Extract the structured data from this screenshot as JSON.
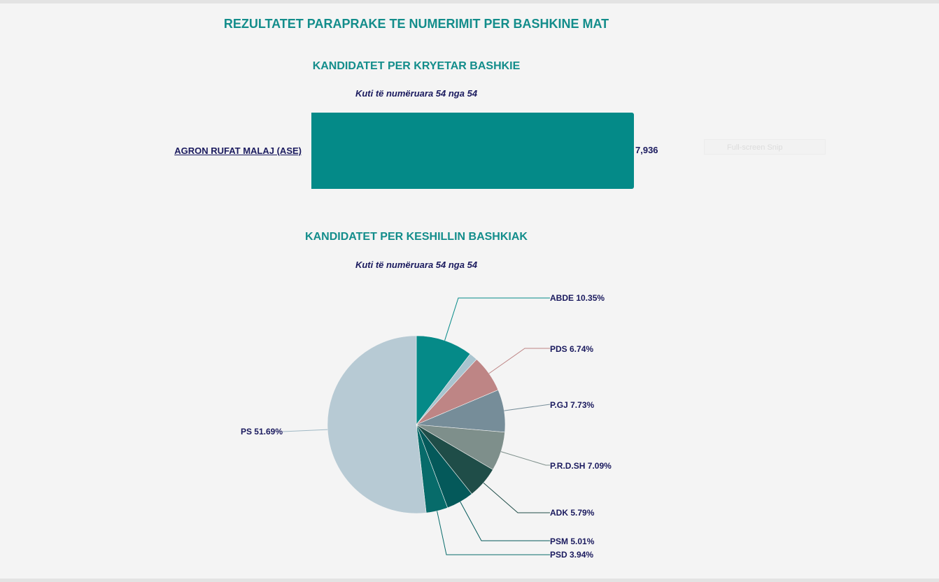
{
  "page": {
    "title": "REZULTATET PARAPRAKE TE NUMERIMIT PER BASHKINE MAT",
    "snip_text": "Full-screen Snip"
  },
  "chart_data": [
    {
      "type": "bar",
      "title": "KANDIDATET PER KRYETAR BASHKIE",
      "subtitle": "Kuti të numëruara 54 nga 54",
      "categories": [
        "AGRON RUFAT MALAJ (ASE)"
      ],
      "values": [
        7936
      ],
      "value_labels": [
        "7,936"
      ],
      "color": "#048a88",
      "orientation": "horizontal"
    },
    {
      "type": "pie",
      "title": "KANDIDATET PER KESHILLIN BASHKIAK",
      "subtitle": "Kuti të numëruara 54 nga 54",
      "slices": [
        {
          "name": "ABDE",
          "value": 10.35,
          "label": "ABDE 10.35%",
          "color": "#058a88"
        },
        {
          "name": "",
          "value": 1.5,
          "label": "",
          "color": "#a9c4cf"
        },
        {
          "name": "PDS",
          "value": 6.74,
          "label": "PDS 6.74%",
          "color": "#be8585"
        },
        {
          "name": "P.GJ",
          "value": 7.73,
          "label": "P.GJ 7.73%",
          "color": "#768d99"
        },
        {
          "name": "P.R.D.SH",
          "value": 7.09,
          "label": "P.R.D.SH 7.09%",
          "color": "#7e8f8b"
        },
        {
          "name": "ADK",
          "value": 5.79,
          "label": "ADK 5.79%",
          "color": "#1f4d48"
        },
        {
          "name": "PSM",
          "value": 5.01,
          "label": "PSM 5.01%",
          "color": "#04595a"
        },
        {
          "name": "PSD",
          "value": 3.94,
          "label": "PSD 3.94%",
          "color": "#076b6a"
        },
        {
          "name": "PS",
          "value": 51.69,
          "label": "PS 51.69%",
          "color": "#b7cad4"
        }
      ]
    }
  ]
}
